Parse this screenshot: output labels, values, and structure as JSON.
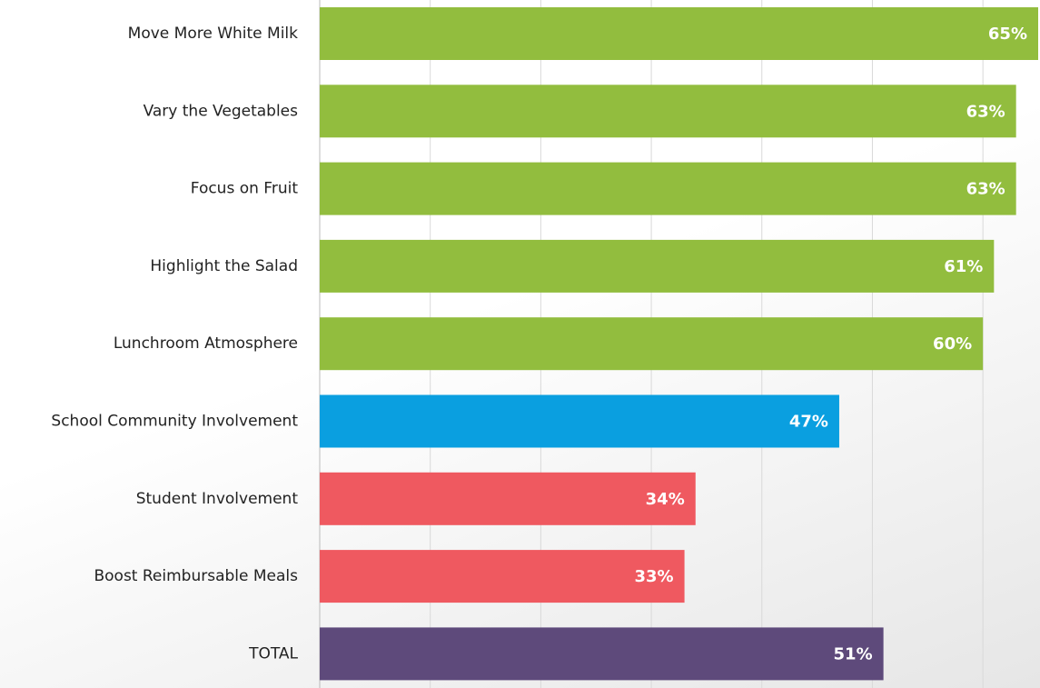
{
  "chart_data": {
    "type": "bar",
    "orientation": "horizontal",
    "categories": [
      "Move More White Milk",
      "Vary the Vegetables",
      "Focus on Fruit",
      "Highlight the Salad",
      "Lunchroom Atmosphere",
      "School Community Involvement",
      "Student Involvement",
      "Boost Reimbursable Meals",
      "TOTAL"
    ],
    "values": [
      65,
      63,
      63,
      61,
      60,
      47,
      34,
      33,
      51
    ],
    "value_labels": [
      "65%",
      "63%",
      "63%",
      "61%",
      "60%",
      "47%",
      "34%",
      "33%",
      "51%"
    ],
    "colors": [
      "#92bd3e",
      "#92bd3e",
      "#92bd3e",
      "#92bd3e",
      "#92bd3e",
      "#0a9fe0",
      "#ef5960",
      "#ef5960",
      "#5e4a7b"
    ],
    "xlim": [
      0,
      65
    ],
    "xticks": [
      0,
      10,
      20,
      30,
      40,
      50,
      60
    ],
    "grid": true
  }
}
